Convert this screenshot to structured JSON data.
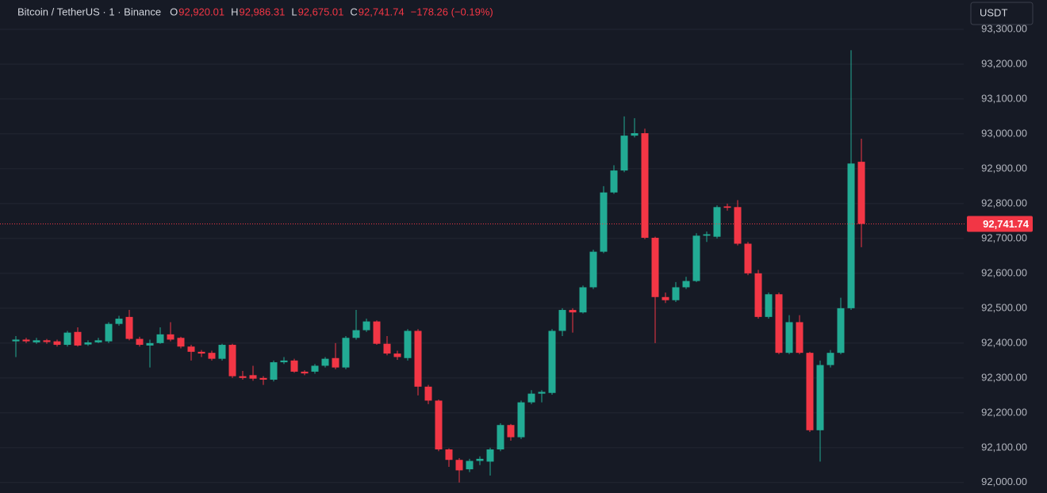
{
  "header": {
    "symbol": "Bitcoin / TetherUS · 1 · Binance",
    "fields": [
      {
        "key": "O",
        "value": "92,920.01"
      },
      {
        "key": "H",
        "value": "92,986.31"
      },
      {
        "key": "L",
        "value": "92,675.01"
      },
      {
        "key": "C",
        "value": "92,741.74"
      }
    ],
    "change": "−178.26 (−0.19%)",
    "currency": "USDT"
  },
  "chart_data": {
    "type": "candlestick",
    "categories": [
      null,
      null,
      null,
      null,
      null,
      null,
      null,
      null,
      null,
      null,
      null,
      null,
      null,
      null,
      null,
      null,
      null,
      null,
      null,
      null,
      null,
      null,
      null,
      null,
      null,
      null,
      null,
      null,
      null,
      null,
      null,
      null,
      null,
      null,
      null,
      null,
      null,
      null,
      null,
      null,
      null,
      null,
      null,
      null,
      null,
      null,
      null,
      null,
      null,
      null,
      null,
      null,
      null,
      null,
      null,
      null,
      null,
      null,
      null,
      null,
      null,
      null,
      null,
      null,
      null,
      null,
      null,
      null,
      null,
      null,
      null,
      null,
      null,
      null,
      null,
      null,
      null,
      null,
      null,
      null,
      null,
      null,
      null
    ],
    "open": [
      92405,
      92410,
      92402,
      92408,
      92405,
      92395,
      92432,
      92396,
      92402,
      92405,
      92455,
      92475,
      92412,
      92393,
      92400,
      92425,
      92415,
      92390,
      92375,
      92372,
      92355,
      92395,
      92305,
      92308,
      92300,
      92295,
      92345,
      92350,
      92318,
      92318,
      92335,
      92357,
      92330,
      92415,
      92437,
      92462,
      92398,
      92370,
      92357,
      92435,
      92275,
      92235,
      92095,
      92065,
      92038,
      92062,
      92060,
      92095,
      92165,
      92130,
      92230,
      92255,
      92257,
      92435,
      92495,
      92488,
      92560,
      92662,
      92832,
      92895,
      92995,
      93002,
      92702,
      92532,
      92523,
      92560,
      92578,
      92708,
      92705,
      92792,
      92790,
      92685,
      92600,
      92475,
      92540,
      92372,
      92460,
      92372,
      92150,
      92337,
      92372,
      92500,
      92920.01
    ],
    "high": [
      92420,
      92415,
      92415,
      92412,
      92410,
      92435,
      92445,
      92408,
      92415,
      92460,
      92478,
      92495,
      92418,
      92410,
      92445,
      92460,
      92418,
      92395,
      92380,
      92378,
      92398,
      92398,
      92320,
      92335,
      92305,
      92350,
      92360,
      92355,
      92322,
      92340,
      92360,
      92400,
      92420,
      92495,
      92470,
      92465,
      92420,
      92378,
      92440,
      92440,
      92280,
      92238,
      92098,
      92070,
      92068,
      92075,
      92100,
      92170,
      92168,
      92235,
      92265,
      92265,
      92440,
      92500,
      92500,
      92565,
      92668,
      92850,
      92910,
      93050,
      93045,
      93015,
      92705,
      92545,
      92575,
      92590,
      92715,
      92720,
      92795,
      92800,
      92810,
      92690,
      92610,
      92545,
      92545,
      92480,
      92480,
      92375,
      92350,
      92380,
      92530,
      93240,
      92986.31
    ],
    "low": [
      92360,
      92400,
      92398,
      92398,
      92390,
      92390,
      92390,
      92392,
      92400,
      92400,
      92450,
      92408,
      92390,
      92330,
      92398,
      92405,
      92385,
      92350,
      92360,
      92350,
      92350,
      92300,
      92295,
      92292,
      92280,
      92290,
      92340,
      92315,
      92308,
      92312,
      92330,
      92325,
      92325,
      92410,
      92432,
      92395,
      92365,
      92352,
      92350,
      92250,
      92225,
      92090,
      92045,
      92000,
      92030,
      92050,
      92020,
      92090,
      92120,
      92125,
      92225,
      92230,
      92252,
      92420,
      92430,
      92485,
      92555,
      92658,
      92828,
      92890,
      92990,
      92698,
      92400,
      92515,
      92518,
      92555,
      92575,
      92690,
      92700,
      92780,
      92680,
      92595,
      92470,
      92470,
      92368,
      92368,
      92368,
      92145,
      92060,
      92330,
      92368,
      92495,
      92675.01
    ],
    "close": [
      92410,
      92405,
      92408,
      92403,
      92395,
      92430,
      92393,
      92402,
      92408,
      92455,
      92470,
      92412,
      92395,
      92400,
      92425,
      92410,
      92390,
      92375,
      92370,
      92355,
      92395,
      92305,
      92300,
      92298,
      92295,
      92345,
      92350,
      92318,
      92313,
      92335,
      92355,
      92330,
      92415,
      92437,
      92462,
      92398,
      92370,
      92360,
      92435,
      92275,
      92235,
      92095,
      92065,
      92035,
      92062,
      92068,
      92095,
      92165,
      92130,
      92230,
      92255,
      92260,
      92435,
      92495,
      92488,
      92560,
      92662,
      92832,
      92895,
      92995,
      93002,
      92702,
      92532,
      92523,
      92560,
      92578,
      92708,
      92712,
      92790,
      92788,
      92685,
      92600,
      92475,
      92540,
      92372,
      92460,
      92372,
      92150,
      92337,
      92372,
      92500,
      92915,
      92741.74
    ],
    "up_color": "#22ab94",
    "down_color": "#f23645",
    "last_price": {
      "value": 92741.74,
      "label": "92,741.74"
    },
    "ylim": [
      91970,
      93384
    ],
    "yticks": [
      {
        "value": 92000,
        "label": "92,000.00"
      },
      {
        "value": 92100,
        "label": "92,100.00"
      },
      {
        "value": 92200,
        "label": "92,200.00"
      },
      {
        "value": 92300,
        "label": "92,300.00"
      },
      {
        "value": 92400,
        "label": "92,400.00"
      },
      {
        "value": 92500,
        "label": "92,500.00"
      },
      {
        "value": 92600,
        "label": "92,600.00"
      },
      {
        "value": 92700,
        "label": "92,700.00"
      },
      {
        "value": 92800,
        "label": "92,800.00"
      },
      {
        "value": 92900,
        "label": "92,900.00"
      },
      {
        "value": 93000,
        "label": "93,000.00"
      },
      {
        "value": 93100,
        "label": "93,100.00"
      },
      {
        "value": 93200,
        "label": "93,200.00"
      },
      {
        "value": 93300,
        "label": "93,300.00"
      }
    ],
    "grid": true
  }
}
